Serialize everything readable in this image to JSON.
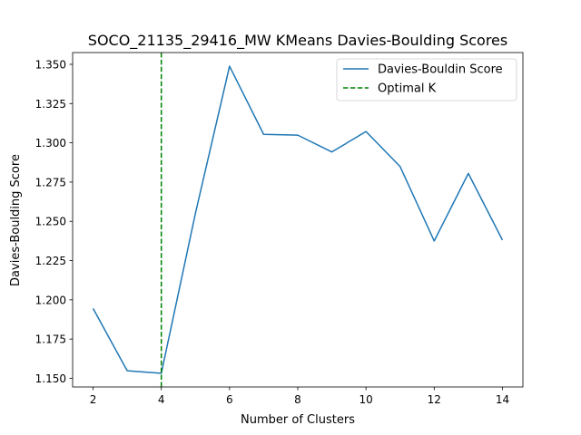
{
  "chart_data": {
    "type": "line",
    "title": "SOCO_21135_29416_MW KMeans Davies-Boulding Scores",
    "xlabel": "Number of Clusters",
    "ylabel": "Davies-Boulding Score",
    "xlim": [
      1.4,
      14.6
    ],
    "ylim": [
      1.1445,
      1.3575
    ],
    "xticks": [
      2,
      4,
      6,
      8,
      10,
      12,
      14
    ],
    "yticks": [
      1.15,
      1.175,
      1.2,
      1.225,
      1.25,
      1.275,
      1.3,
      1.325,
      1.35
    ],
    "ytick_labels": [
      "1.150",
      "1.175",
      "1.200",
      "1.225",
      "1.250",
      "1.275",
      "1.300",
      "1.325",
      "1.350"
    ],
    "grid": false,
    "legend_position": "top-right",
    "series": [
      {
        "name": "Davies-Bouldin Score",
        "color": "#1f77b4",
        "x": [
          2,
          3,
          4,
          5,
          6,
          7,
          8,
          9,
          10,
          11,
          12,
          13,
          14
        ],
        "y": [
          1.1945,
          1.1548,
          1.1532,
          1.2551,
          1.3488,
          1.3054,
          1.3049,
          1.2942,
          1.3072,
          1.2849,
          1.2375,
          1.2805,
          1.2381
        ]
      }
    ],
    "reference_lines": [
      {
        "name": "Optimal K",
        "orientation": "vertical",
        "x": 4,
        "color": "#008000",
        "style": "dashed"
      }
    ]
  }
}
